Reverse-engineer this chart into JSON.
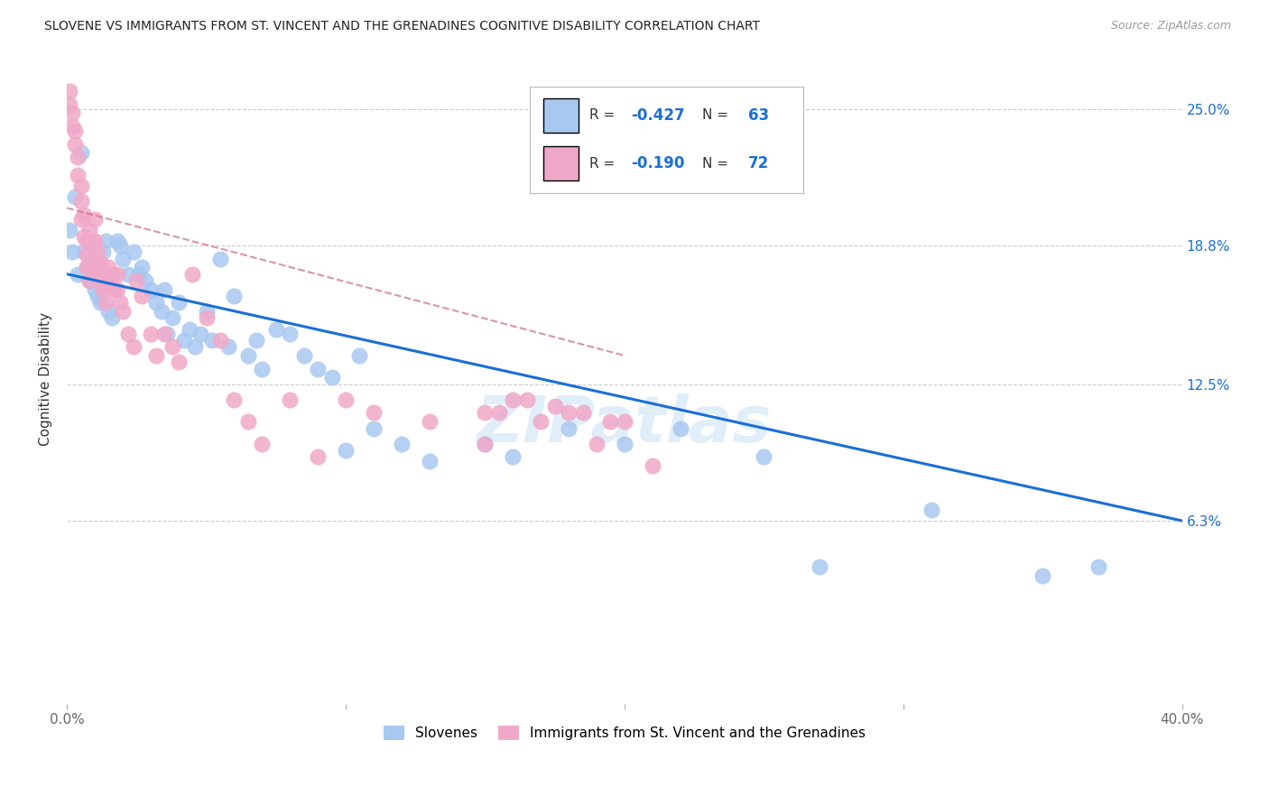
{
  "title": "SLOVENE VS IMMIGRANTS FROM ST. VINCENT AND THE GRENADINES COGNITIVE DISABILITY CORRELATION CHART",
  "source": "Source: ZipAtlas.com",
  "ylabel": "Cognitive Disability",
  "ytick_labels": [
    "25.0%",
    "18.8%",
    "12.5%",
    "6.3%"
  ],
  "ytick_values": [
    0.25,
    0.188,
    0.125,
    0.063
  ],
  "xlim": [
    0.0,
    0.4
  ],
  "ylim": [
    -0.02,
    0.275
  ],
  "blue_color": "#a8c8f0",
  "pink_color": "#f0a8c8",
  "blue_line_color": "#1a6fd4",
  "pink_line_color": "#cc7090",
  "blue_R": -0.427,
  "blue_N": 63,
  "pink_R": -0.19,
  "pink_N": 72,
  "legend_label_blue": "Slovenes",
  "legend_label_pink": "Immigrants from St. Vincent and the Grenadines",
  "blue_x": [
    0.001,
    0.002,
    0.003,
    0.004,
    0.005,
    0.006,
    0.007,
    0.008,
    0.009,
    0.01,
    0.011,
    0.012,
    0.013,
    0.014,
    0.015,
    0.016,
    0.018,
    0.019,
    0.02,
    0.022,
    0.024,
    0.026,
    0.027,
    0.028,
    0.03,
    0.032,
    0.034,
    0.035,
    0.036,
    0.038,
    0.04,
    0.042,
    0.044,
    0.046,
    0.048,
    0.05,
    0.052,
    0.055,
    0.058,
    0.06,
    0.065,
    0.068,
    0.07,
    0.075,
    0.08,
    0.085,
    0.09,
    0.095,
    0.1,
    0.105,
    0.11,
    0.12,
    0.13,
    0.15,
    0.16,
    0.18,
    0.2,
    0.22,
    0.25,
    0.27,
    0.31,
    0.35,
    0.37
  ],
  "blue_y": [
    0.195,
    0.185,
    0.21,
    0.175,
    0.23,
    0.185,
    0.178,
    0.172,
    0.18,
    0.168,
    0.165,
    0.162,
    0.185,
    0.19,
    0.158,
    0.155,
    0.19,
    0.188,
    0.182,
    0.175,
    0.185,
    0.175,
    0.178,
    0.172,
    0.168,
    0.162,
    0.158,
    0.168,
    0.148,
    0.155,
    0.162,
    0.145,
    0.15,
    0.142,
    0.148,
    0.158,
    0.145,
    0.182,
    0.142,
    0.165,
    0.138,
    0.145,
    0.132,
    0.15,
    0.148,
    0.138,
    0.132,
    0.128,
    0.095,
    0.138,
    0.105,
    0.098,
    0.09,
    0.098,
    0.092,
    0.105,
    0.098,
    0.105,
    0.092,
    0.042,
    0.068,
    0.038,
    0.042
  ],
  "pink_x": [
    0.001,
    0.001,
    0.002,
    0.002,
    0.003,
    0.003,
    0.004,
    0.004,
    0.005,
    0.005,
    0.005,
    0.006,
    0.006,
    0.007,
    0.007,
    0.007,
    0.008,
    0.008,
    0.008,
    0.009,
    0.009,
    0.01,
    0.01,
    0.01,
    0.011,
    0.011,
    0.012,
    0.012,
    0.013,
    0.013,
    0.014,
    0.015,
    0.015,
    0.016,
    0.017,
    0.018,
    0.018,
    0.019,
    0.02,
    0.022,
    0.024,
    0.025,
    0.027,
    0.03,
    0.032,
    0.035,
    0.038,
    0.04,
    0.045,
    0.05,
    0.055,
    0.06,
    0.065,
    0.07,
    0.08,
    0.09,
    0.1,
    0.11,
    0.13,
    0.15,
    0.17,
    0.19,
    0.21,
    0.15,
    0.16,
    0.175,
    0.185,
    0.195,
    0.2,
    0.155,
    0.165,
    0.18
  ],
  "pink_y": [
    0.258,
    0.252,
    0.248,
    0.242,
    0.24,
    0.234,
    0.228,
    0.22,
    0.215,
    0.208,
    0.2,
    0.202,
    0.192,
    0.19,
    0.184,
    0.178,
    0.195,
    0.178,
    0.172,
    0.19,
    0.178,
    0.2,
    0.19,
    0.182,
    0.185,
    0.175,
    0.18,
    0.172,
    0.175,
    0.168,
    0.162,
    0.178,
    0.17,
    0.175,
    0.168,
    0.175,
    0.168,
    0.162,
    0.158,
    0.148,
    0.142,
    0.172,
    0.165,
    0.148,
    0.138,
    0.148,
    0.142,
    0.135,
    0.175,
    0.155,
    0.145,
    0.118,
    0.108,
    0.098,
    0.118,
    0.092,
    0.118,
    0.112,
    0.108,
    0.098,
    0.108,
    0.098,
    0.088,
    0.112,
    0.118,
    0.115,
    0.112,
    0.108,
    0.108,
    0.112,
    0.118,
    0.112
  ]
}
